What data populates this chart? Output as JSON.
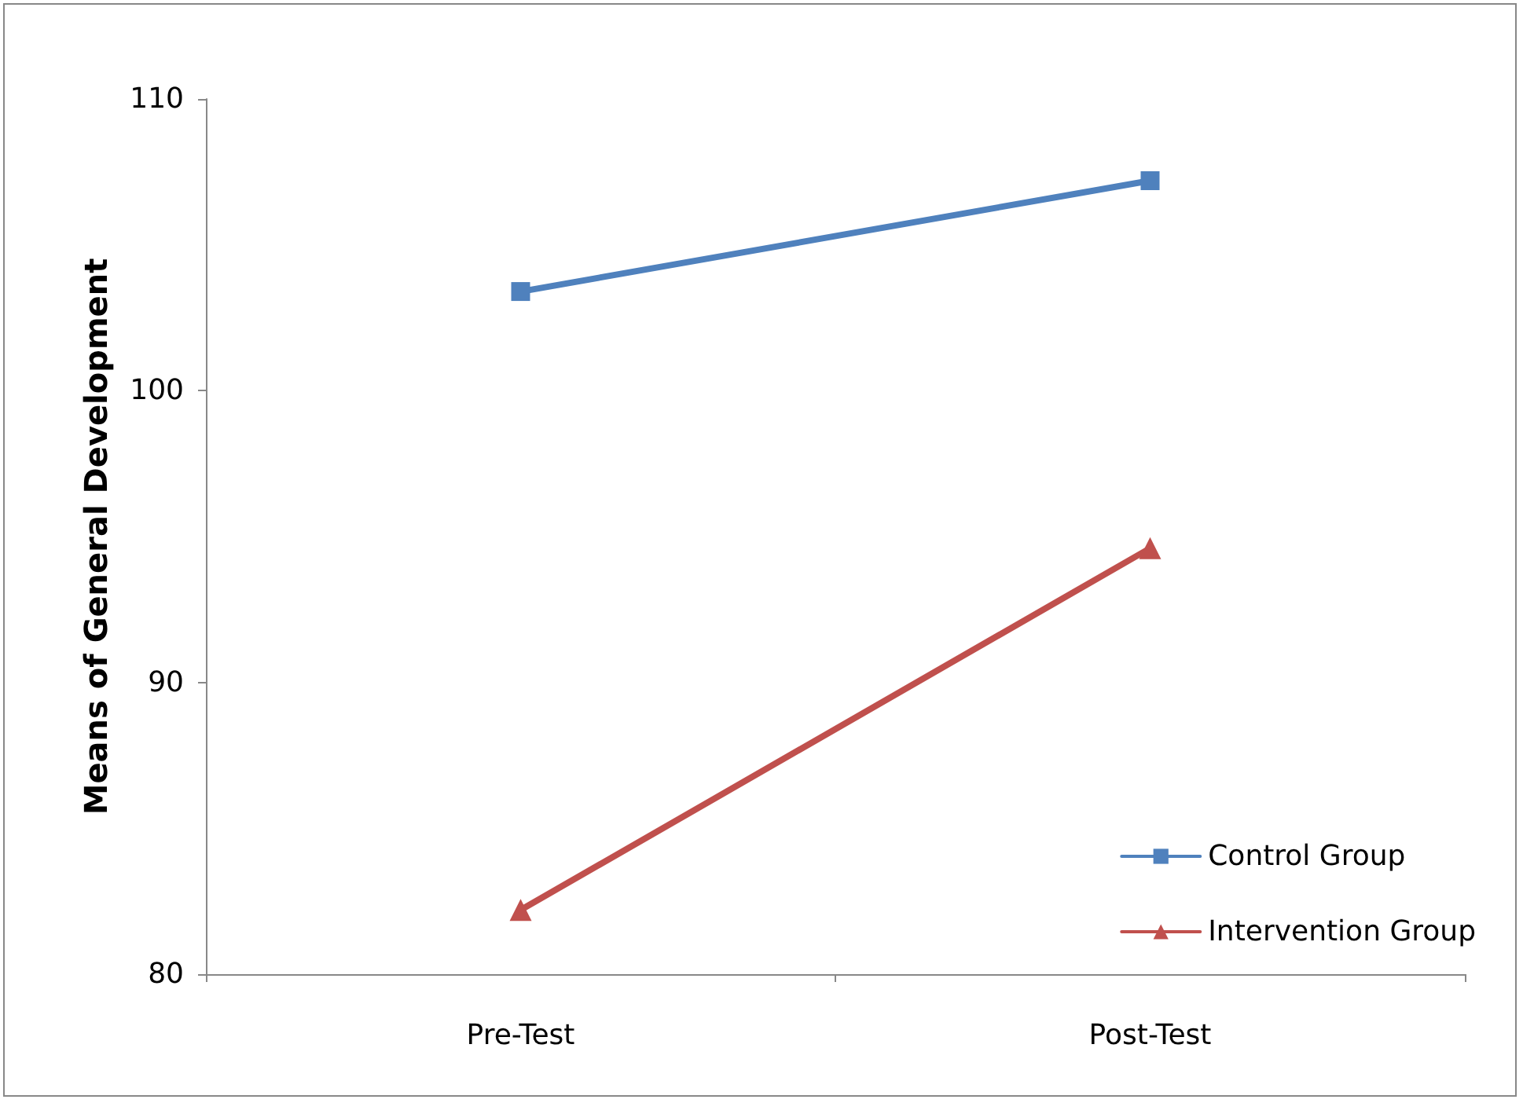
{
  "chart_data": {
    "type": "line",
    "ylabel": "Means of General Development",
    "categories": [
      "Pre-Test",
      "Post-Test"
    ],
    "series": [
      {
        "name": "Control Group",
        "color": "#4f81bd",
        "marker": "square",
        "values": [
          103.4,
          107.2
        ]
      },
      {
        "name": "Intervention Group",
        "color": "#c0504d",
        "marker": "triangle",
        "values": [
          82.2,
          94.6
        ]
      }
    ],
    "ylim": [
      80,
      110
    ],
    "yticks": [
      80,
      90,
      100,
      110
    ],
    "grid": false,
    "legend": "bottom right",
    "line_style": "solid"
  }
}
